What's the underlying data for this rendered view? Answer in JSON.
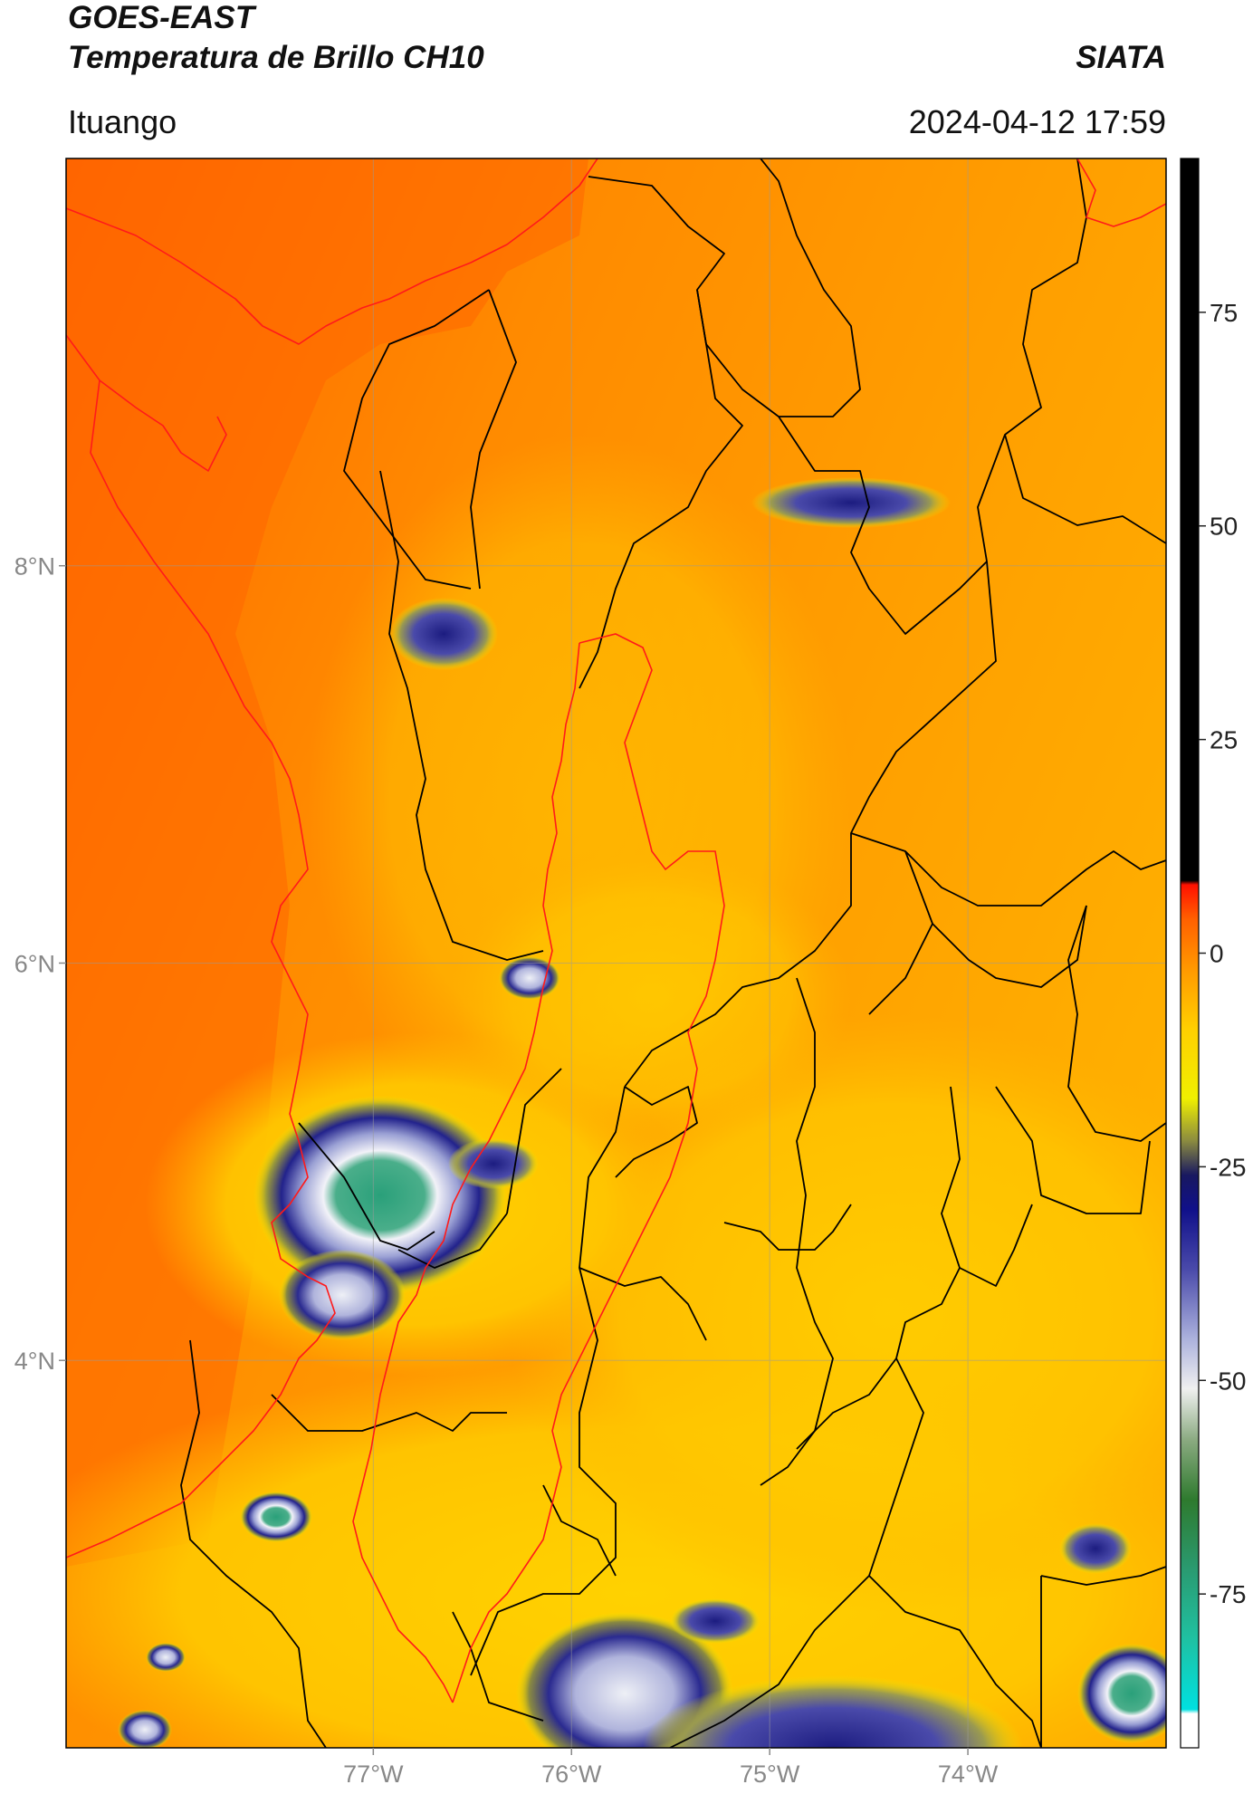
{
  "header": {
    "satellite": "GOES-EAST",
    "product": "Temperatura de Brillo CH10",
    "organization": "SIATA",
    "location": "Ituango",
    "timestamp": "2024-04-12 17:59"
  },
  "map": {
    "lon_range": [
      -78.55,
      -73.0
    ],
    "lat_range": [
      2.05,
      10.05
    ],
    "gridlines": true,
    "lon_ticks": [
      {
        "value": -77,
        "label": "77°W"
      },
      {
        "value": -76,
        "label": "76°W"
      },
      {
        "value": -75,
        "label": "75°W"
      },
      {
        "value": -74,
        "label": "74°W"
      }
    ],
    "lat_ticks": [
      {
        "value": 8,
        "label": "8°N"
      },
      {
        "value": 6,
        "label": "6°N"
      },
      {
        "value": 4,
        "label": "4°N"
      }
    ],
    "boundary_colors": {
      "admin": "#000000",
      "basin": "#ff1a1a"
    }
  },
  "colorbar": {
    "range": [
      -93,
      93
    ],
    "ticks": [
      {
        "value": 75,
        "label": "75"
      },
      {
        "value": 50,
        "label": "50"
      },
      {
        "value": 25,
        "label": "25"
      },
      {
        "value": 0,
        "label": "0"
      },
      {
        "value": -25,
        "label": "-25"
      },
      {
        "value": -50,
        "label": "-50"
      },
      {
        "value": -75,
        "label": "-75"
      }
    ],
    "stops": [
      {
        "value": -93,
        "color": "#ffffff"
      },
      {
        "value": -89,
        "color": "#ffffff"
      },
      {
        "value": -88.5,
        "color": "#00e0e0"
      },
      {
        "value": -80,
        "color": "#20c0a0"
      },
      {
        "value": -72,
        "color": "#2a9a70"
      },
      {
        "value": -64,
        "color": "#2e7a2e"
      },
      {
        "value": -57,
        "color": "#8aaa80"
      },
      {
        "value": -51,
        "color": "#f0f0f0"
      },
      {
        "value": -45,
        "color": "#aab0dc"
      },
      {
        "value": -37,
        "color": "#4a4aaa"
      },
      {
        "value": -30,
        "color": "#10108a"
      },
      {
        "value": -26,
        "color": "#181860"
      },
      {
        "value": -22,
        "color": "#8a8a40"
      },
      {
        "value": -17,
        "color": "#f0f000"
      },
      {
        "value": -9,
        "color": "#ffd000"
      },
      {
        "value": -2,
        "color": "#ff9a00"
      },
      {
        "value": 4,
        "color": "#ff6000"
      },
      {
        "value": 8,
        "color": "#ff1000"
      },
      {
        "value": 8.5,
        "color": "#000000"
      },
      {
        "value": 93,
        "color": "#000000"
      }
    ]
  },
  "colors": {
    "warm_sea": "#ff6a00",
    "warm_land": "#ff9f00",
    "mid_land": "#ffb400",
    "cool_land": "#ffd400",
    "lowland_yellow": "#f4e800",
    "cloud_navy": "#1a1a80",
    "cloud_white": "#eaeaf5",
    "cloud_green": "#2a9a70"
  }
}
